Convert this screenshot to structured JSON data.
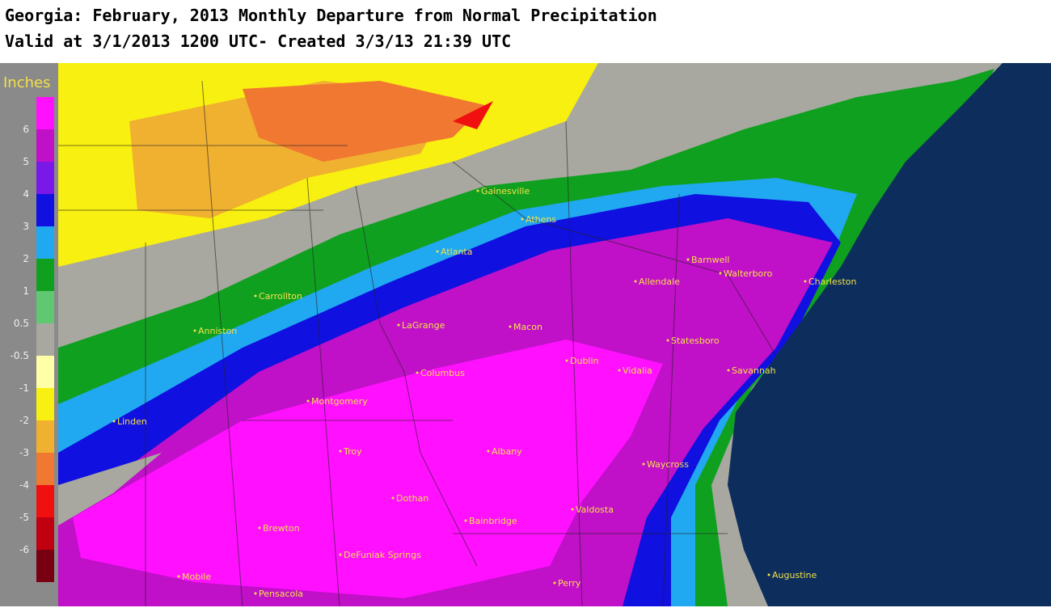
{
  "header": {
    "title": "Georgia: February, 2013 Monthly Departure from Normal Precipitation",
    "subtitle": "Valid at 3/1/2013 1200 UTC- Created 3/3/13 21:39 UTC"
  },
  "legend": {
    "unit": "Inches",
    "labels": [
      "6",
      "5",
      "4",
      "3",
      "2",
      "1",
      "0.5",
      "-0.5",
      "-1",
      "-2",
      "-3",
      "-4",
      "-5",
      "-6"
    ],
    "colors": [
      "#ff10ff",
      "#c010c8",
      "#7a18e8",
      "#1010e0",
      "#20a8f0",
      "#10a020",
      "#60c870",
      "#a8a8a0",
      "#ffffa8",
      "#f8f010",
      "#f0b030",
      "#f07830",
      "#f01010",
      "#c00010",
      "#780010"
    ]
  },
  "cities": [
    "Gainesville",
    "Athens",
    "Atlanta",
    "Barnwell",
    "Allendale",
    "Walterboro",
    "Charleston",
    "Carrollton",
    "Anniston",
    "LaGrange",
    "Macon",
    "Statesboro",
    "Dublin",
    "Vidalia",
    "Savannah",
    "Columbus",
    "Montgomery",
    "Linden",
    "Troy",
    "Albany",
    "Waycross",
    "Dothan",
    "Valdosta",
    "Bainbridge",
    "Brewton",
    "DeFuniak Springs",
    "Mobile",
    "Pensacola",
    "Perry",
    "Augustine"
  ]
}
